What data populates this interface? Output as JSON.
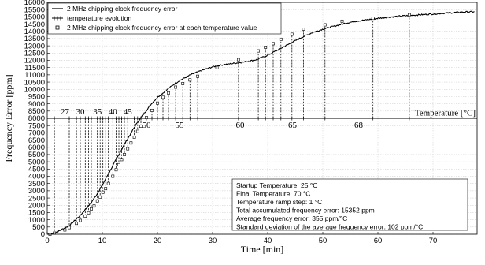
{
  "chart_data": {
    "type": "line",
    "xlabel": "Time [min]",
    "ylabel": "Frequency Error [ppm]",
    "xlim": [
      0,
      78
    ],
    "ylim": [
      0,
      16000
    ],
    "x_ticks": [
      0,
      10,
      20,
      30,
      40,
      50,
      60,
      70
    ],
    "y_ticks": [
      0,
      500,
      1000,
      1500,
      2000,
      2500,
      3000,
      3500,
      4000,
      4500,
      5000,
      5500,
      6000,
      6500,
      7000,
      7500,
      8000,
      8500,
      9000,
      9500,
      10000,
      10500,
      11000,
      11500,
      12000,
      12500,
      13000,
      13500,
      14000,
      14500,
      15000,
      15500,
      16000
    ],
    "grid": true,
    "legend_position": "top-left",
    "legend": [
      "2 MHz chipping clock frequency error",
      "temperature evolution",
      "2 MHz chipping clock frequency error at each temperature value"
    ],
    "temperature_axis": {
      "title": "Temperature [°C]",
      "baseline_ppm": 8000,
      "labels_above": [
        {
          "label": "27",
          "time": 3.2
        },
        {
          "label": "30",
          "time": 6.0
        },
        {
          "label": "35",
          "time": 9.1
        },
        {
          "label": "40",
          "time": 11.9
        },
        {
          "label": "45",
          "time": 14.6
        }
      ],
      "labels_below": [
        {
          "label": "50",
          "time": 18.0
        },
        {
          "label": "55",
          "time": 24.0
        },
        {
          "label": "60",
          "time": 35.0
        },
        {
          "label": "65",
          "time": 44.5
        },
        {
          "label": "68",
          "time": 56.5
        }
      ]
    },
    "series": [
      {
        "name": "2 MHz chipping clock frequency error",
        "x": [
          0,
          1,
          2,
          3,
          4,
          5,
          6,
          7,
          8,
          9,
          10,
          11,
          12,
          13,
          14,
          15,
          16,
          17,
          18,
          19,
          20,
          21,
          22,
          23,
          24,
          25,
          26,
          27,
          28,
          29,
          30,
          32,
          34,
          36,
          38,
          40,
          42,
          44,
          46,
          48,
          50,
          52,
          54,
          56,
          58,
          60,
          62,
          64,
          66,
          68,
          70,
          72,
          74,
          76,
          77.5
        ],
        "values": [
          0,
          50,
          200,
          400,
          600,
          950,
          1300,
          1750,
          2200,
          2750,
          3400,
          4100,
          4800,
          5500,
          6200,
          6850,
          7500,
          8050,
          8550,
          9050,
          9450,
          9750,
          10050,
          10350,
          10600,
          10800,
          11000,
          11150,
          11300,
          11420,
          11550,
          11700,
          11800,
          11900,
          12050,
          12350,
          12750,
          13150,
          13550,
          13900,
          14150,
          14350,
          14550,
          14700,
          14800,
          14900,
          14980,
          15050,
          15100,
          15150,
          15200,
          15250,
          15300,
          15340,
          15352
        ]
      }
    ],
    "temperature_points": {
      "name": "2 MHz chipping clock frequency error at each temperature value",
      "temperatures": [
        25,
        26,
        27,
        28,
        29,
        30,
        31,
        32,
        33,
        34,
        35,
        36,
        37,
        38,
        39,
        40,
        41,
        42,
        43,
        44,
        45,
        46,
        47,
        48,
        49,
        50,
        51,
        52,
        53,
        54,
        55,
        56,
        57,
        58,
        59,
        60,
        61,
        62,
        63,
        64,
        65,
        66,
        67,
        68,
        69,
        70
      ],
      "time": [
        0.5,
        1.3,
        3.2,
        4.0,
        5.3,
        6.0,
        6.9,
        7.5,
        8.0,
        8.5,
        9.1,
        9.6,
        10.1,
        10.6,
        11.1,
        11.9,
        12.5,
        13.0,
        13.5,
        14.0,
        14.6,
        15.2,
        15.8,
        16.4,
        17.0,
        18.0,
        19.0,
        20.0,
        21.0,
        22.0,
        23.3,
        24.6,
        25.9,
        27.3,
        30.8,
        34.7,
        38.3,
        39.6,
        41.0,
        42.4,
        44.4,
        46.5,
        50.4,
        53.5,
        59.1,
        65.7
      ],
      "values": [
        0,
        80,
        300,
        460,
        750,
        950,
        1250,
        1480,
        1750,
        1950,
        2300,
        2570,
        2900,
        3150,
        3500,
        4000,
        4450,
        4800,
        5150,
        5500,
        5900,
        6300,
        6700,
        7100,
        7450,
        8050,
        8550,
        9050,
        9450,
        9750,
        10150,
        10400,
        10650,
        10900,
        11500,
        12050,
        12650,
        12900,
        13150,
        13450,
        13800,
        14150,
        14450,
        14700,
        14900,
        15150
      ]
    },
    "annotation_box": [
      "Startup Temperature: 25 °C",
      "Final Temperature: 70 °C",
      "Temperature ramp step: 1 °C",
      "Total accumulated frequency error: 15352 ppm",
      "Average frequency error: 355 ppm/°C",
      "Standard deviation of the average frequency error: 102 ppm/°C"
    ]
  }
}
